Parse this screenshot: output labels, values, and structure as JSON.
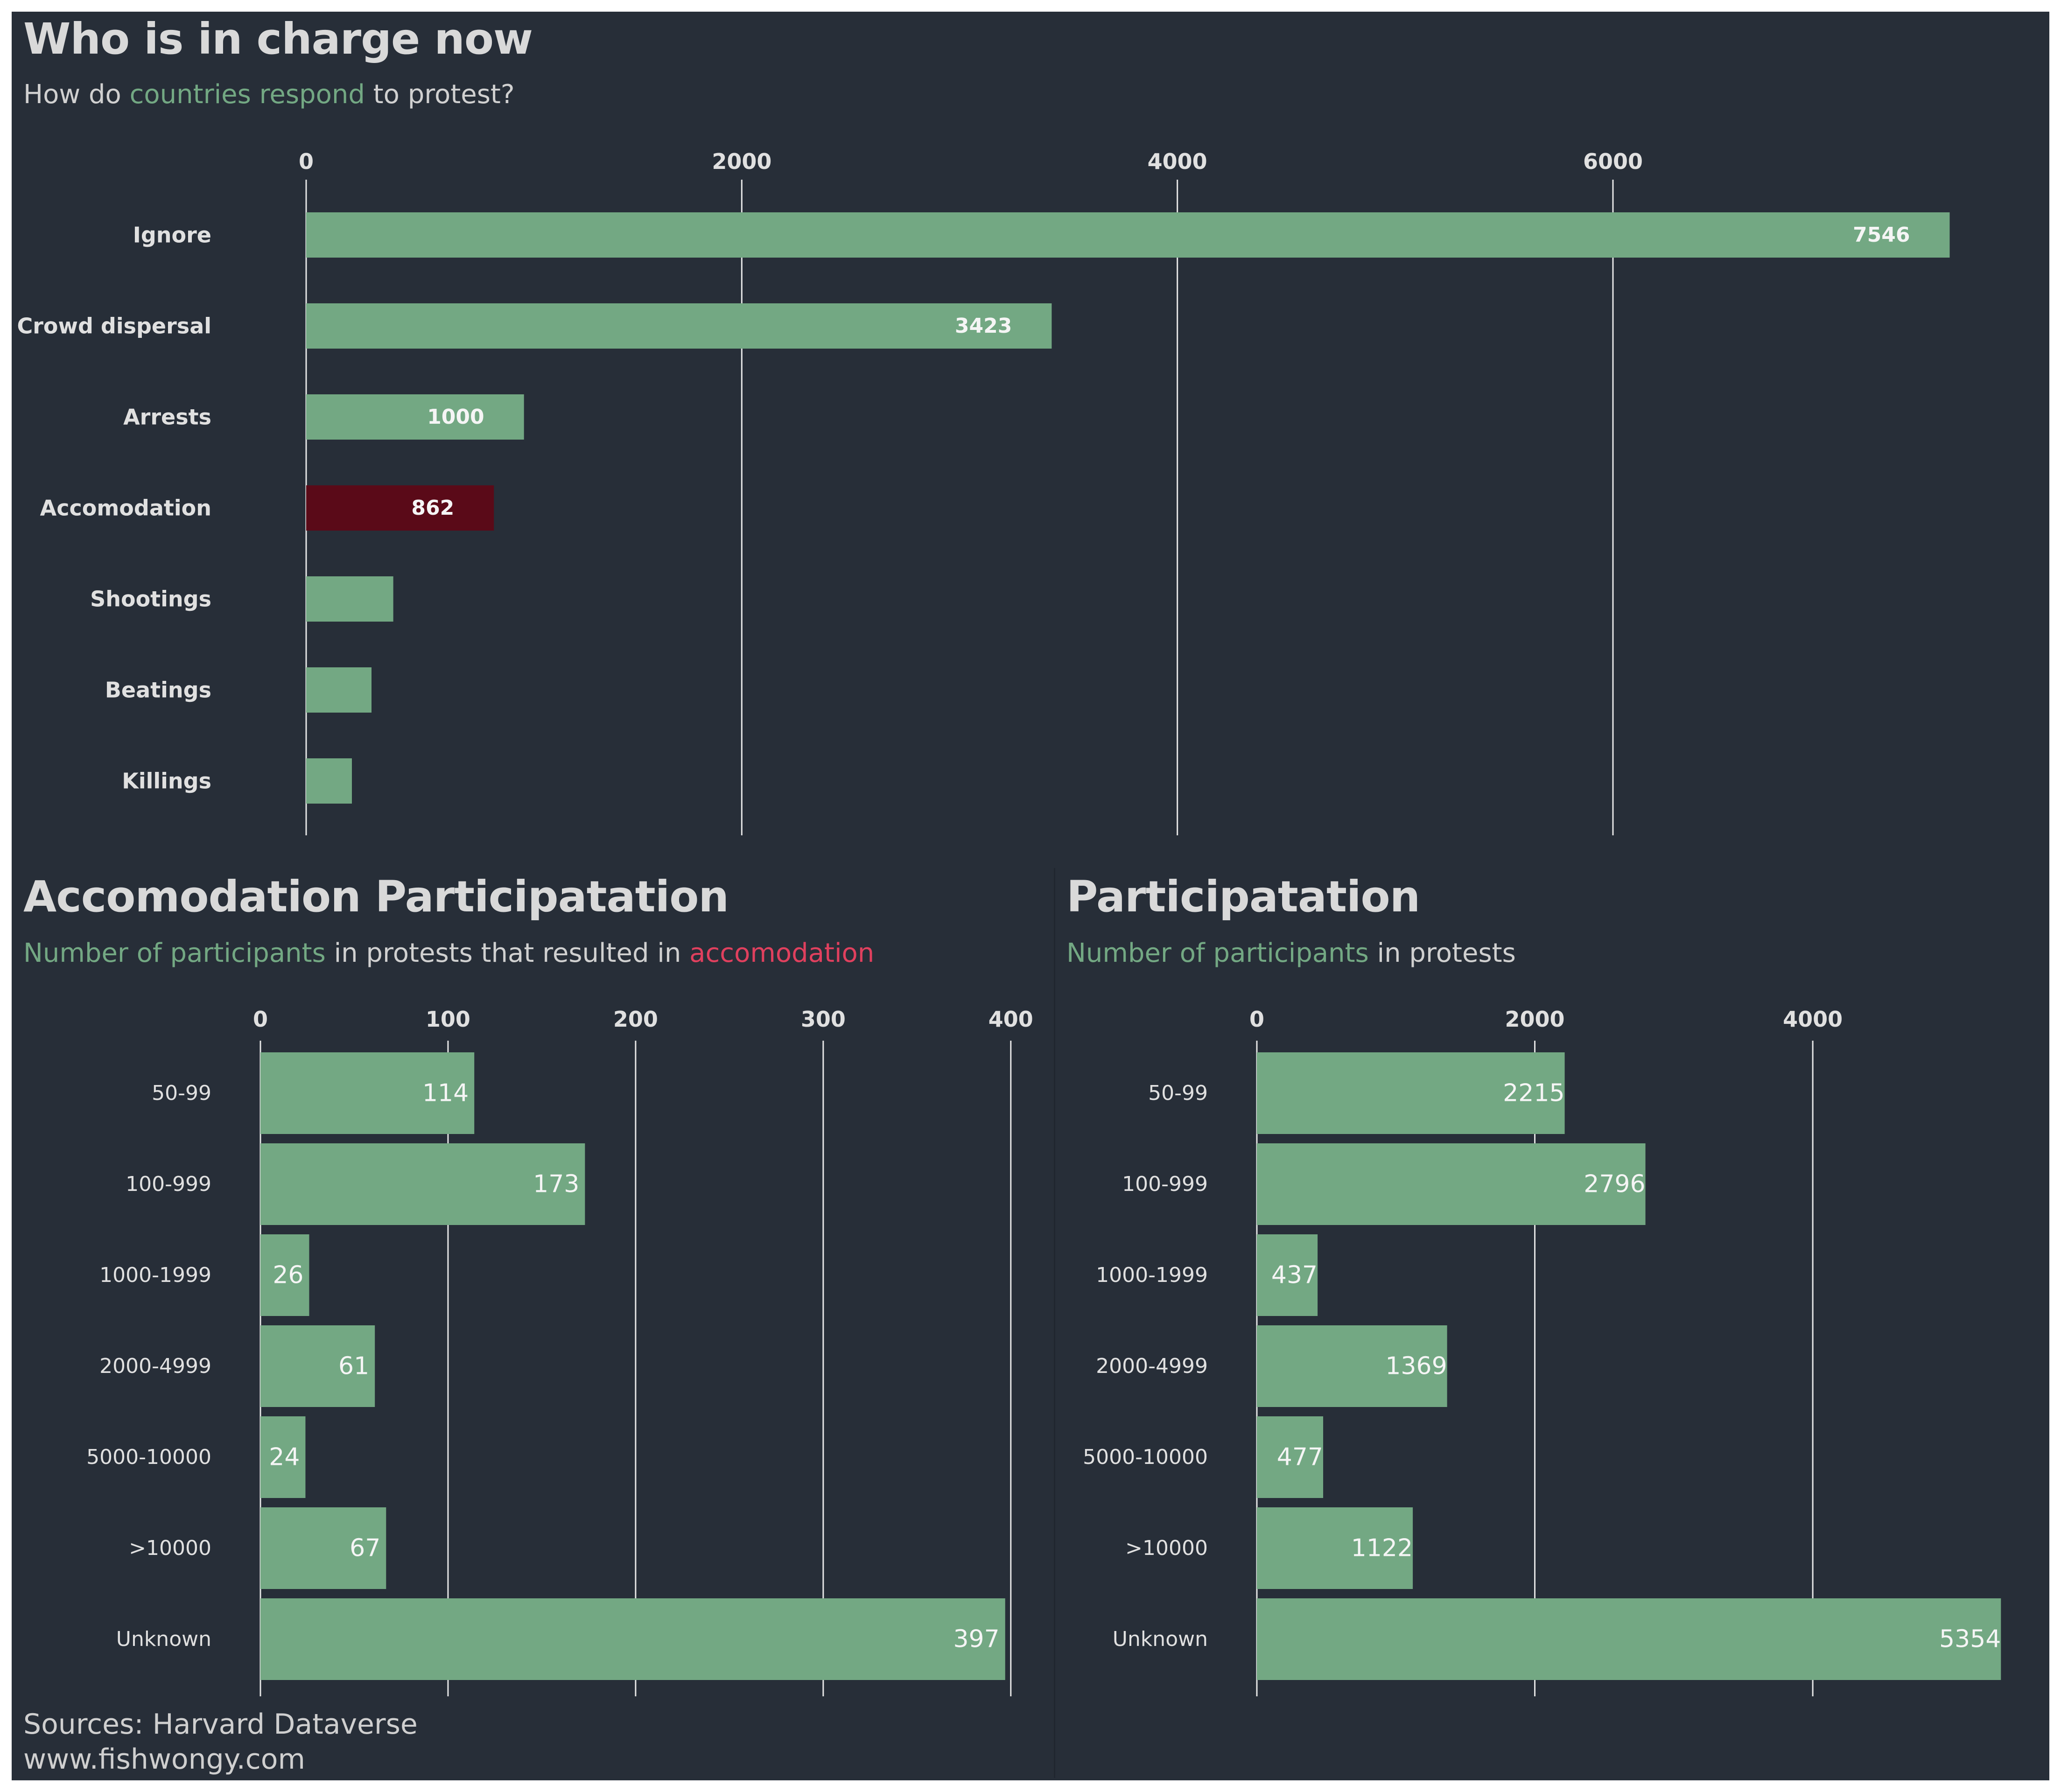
{
  "colors": {
    "background": "#272e38",
    "bar": "#73a883",
    "highlight_bar": "#5a0a18",
    "accent_green": "#73a883",
    "accent_red": "#e0405e",
    "text": "#d9d9d9"
  },
  "header": {
    "title": "Who is in charge now",
    "subtitle_pre": "How do ",
    "subtitle_hl": "countries respond",
    "subtitle_post": " to protest?"
  },
  "left_panel": {
    "title": "Accomodation Participatation",
    "subtitle_hl1": "Number of participants",
    "subtitle_mid": " in protests that resulted in ",
    "subtitle_hl2": "accomodation"
  },
  "right_panel": {
    "title": "Participatation",
    "subtitle_hl": "Number of participants",
    "subtitle_post": " in protests"
  },
  "footer": {
    "source": "Sources: Harvard Dataverse",
    "website": "www.fishwongy.com"
  },
  "chart_data": [
    {
      "type": "bar",
      "orientation": "horizontal",
      "categories": [
        "Ignore",
        "Crowd dispersal",
        "Arrests",
        "Accomodation",
        "Shootings",
        "Beatings",
        "Killings"
      ],
      "values": [
        7546,
        3423,
        1000,
        862,
        400,
        300,
        210
      ],
      "data_labels": [
        "7546",
        "3423",
        "1000",
        "862",
        "",
        "",
        ""
      ],
      "highlight_category": "Accomodation",
      "xticks": [
        0,
        2000,
        4000,
        6000
      ],
      "xlim": [
        0,
        7800
      ],
      "grid": true
    },
    {
      "type": "bar",
      "orientation": "horizontal",
      "categories": [
        "50-99",
        "100-999",
        "1000-1999",
        "2000-4999",
        "5000-10000",
        ">10000",
        "Unknown"
      ],
      "values": [
        114,
        173,
        26,
        61,
        24,
        67,
        397
      ],
      "data_labels": [
        "114",
        "173",
        "26",
        "61",
        "24",
        "67",
        "397"
      ],
      "xticks": [
        0,
        100,
        200,
        300,
        400
      ],
      "xlim": [
        0,
        410
      ],
      "grid": true
    },
    {
      "type": "bar",
      "orientation": "horizontal",
      "categories": [
        "50-99",
        "100-999",
        "1000-1999",
        "2000-4999",
        "5000-10000",
        ">10000",
        "Unknown"
      ],
      "values": [
        2215,
        2796,
        437,
        1369,
        477,
        1122,
        5354
      ],
      "data_labels": [
        "2215",
        "2796",
        "437",
        "1369",
        "477",
        "1122",
        "5354"
      ],
      "xticks": [
        0,
        2000,
        4000
      ],
      "xlim": [
        0,
        5400
      ],
      "grid": true
    }
  ]
}
